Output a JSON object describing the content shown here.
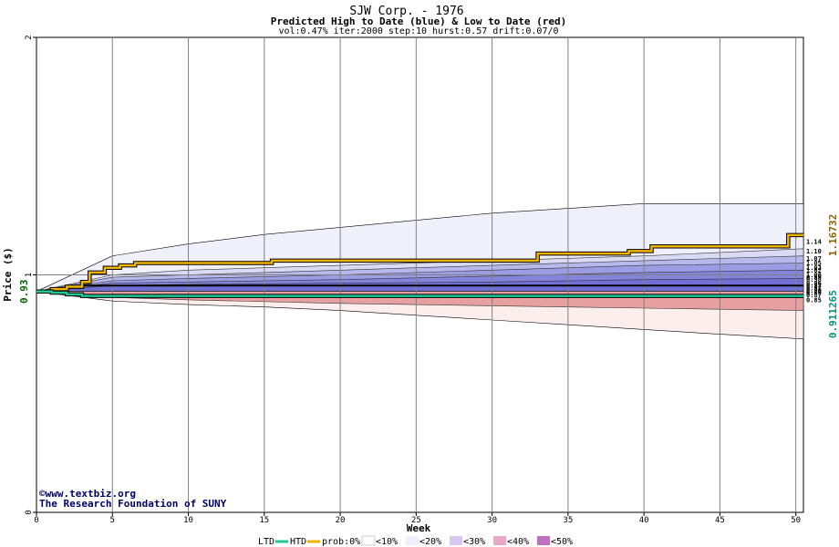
{
  "header": {
    "title": "SJW Corp. - 1976",
    "subtitle": "Predicted High to Date (blue) &  Low to Date (red)",
    "params": "vol:0.47% iter:2000 step:10 hurst:0.57 drift:0.07/0"
  },
  "credits": {
    "site": "www.textbiz.org",
    "org": "The Research Foundation of SUNY"
  },
  "legend": {
    "ltd": "LTD",
    "htd": "HTD",
    "prob": "prob:0%",
    "b10": "<10%",
    "b20": "<20%",
    "b30": "<30%",
    "b40": "<40%",
    "b50": "<50%"
  },
  "chart_data": {
    "type": "area",
    "title": "SJW Corp. - 1976",
    "xlabel": "Week",
    "ylabel": "Price ($)",
    "xlim": [
      0,
      50.5
    ],
    "ylim": [
      0,
      2
    ],
    "x_ticks": [
      0,
      5,
      10,
      15,
      20,
      25,
      30,
      35,
      40,
      45,
      50
    ],
    "y_ticks": [
      0,
      1,
      2
    ],
    "y_start_label": "0.93",
    "start_price": 0.93,
    "grid": true,
    "colors": {
      "htd": "#f0b400",
      "ltd": "#1ec896",
      "blue_band": "#8080e0",
      "red_band": "#f0a0a0",
      "high_value": "#8c6400",
      "low_value": "#009678"
    },
    "high_envelope": {
      "x": [
        0,
        5,
        10,
        15,
        20,
        25,
        30,
        35,
        40,
        45,
        50.5
      ],
      "y": [
        0.93,
        1.08,
        1.13,
        1.17,
        1.2,
        1.23,
        1.26,
        1.28,
        1.3,
        1.3,
        1.3
      ]
    },
    "low_envelope": {
      "x": [
        0,
        5,
        10,
        15,
        20,
        25,
        30,
        35,
        40,
        45,
        50.5
      ],
      "y": [
        0.93,
        0.89,
        0.875,
        0.865,
        0.85,
        0.83,
        0.81,
        0.79,
        0.77,
        0.75,
        0.73
      ]
    },
    "high_bands": [
      {
        "x": [
          0,
          5,
          10,
          20,
          30,
          40,
          50.5
        ],
        "y": [
          0.93,
          1.0,
          1.02,
          1.04,
          1.06,
          1.08,
          1.11
        ]
      },
      {
        "x": [
          0,
          5,
          10,
          20,
          30,
          40,
          50.5
        ],
        "y": [
          0.93,
          0.99,
          1.0,
          1.02,
          1.04,
          1.06,
          1.08
        ]
      },
      {
        "x": [
          0,
          5,
          10,
          20,
          30,
          40,
          50.5
        ],
        "y": [
          0.93,
          0.975,
          0.985,
          1.0,
          1.02,
          1.04,
          1.05
        ]
      },
      {
        "x": [
          0,
          5,
          10,
          20,
          30,
          40,
          50.5
        ],
        "y": [
          0.93,
          0.965,
          0.97,
          0.98,
          0.995,
          1.01,
          1.02
        ]
      },
      {
        "x": [
          0,
          5,
          10,
          20,
          30,
          40,
          50.5
        ],
        "y": [
          0.93,
          0.955,
          0.96,
          0.965,
          0.97,
          0.98,
          0.985
        ]
      }
    ],
    "low_bands": [
      {
        "x": [
          0,
          5,
          10,
          20,
          30,
          40,
          50.5
        ],
        "y": [
          0.93,
          0.92,
          0.915,
          0.91,
          0.905,
          0.9,
          0.895
        ]
      },
      {
        "x": [
          0,
          5,
          10,
          20,
          30,
          40,
          50.5
        ],
        "y": [
          0.93,
          0.915,
          0.905,
          0.895,
          0.885,
          0.875,
          0.87
        ]
      },
      {
        "x": [
          0,
          5,
          10,
          20,
          30,
          40,
          50.5
        ],
        "y": [
          0.93,
          0.905,
          0.895,
          0.88,
          0.87,
          0.86,
          0.85
        ]
      }
    ],
    "htd_series": {
      "name": "HTD",
      "x": [
        0,
        1,
        1,
        2,
        2,
        3,
        3,
        3.5,
        3.5,
        4.5,
        4.5,
        5.5,
        5.5,
        6.5,
        6.5,
        15.5,
        15.5,
        33,
        33,
        39,
        39,
        40.5,
        40.5,
        49.5,
        49.5,
        50.5
      ],
      "y": [
        0.93,
        0.93,
        0.94,
        0.94,
        0.95,
        0.95,
        0.97,
        0.97,
        1.01,
        1.01,
        1.03,
        1.03,
        1.04,
        1.04,
        1.05,
        1.05,
        1.06,
        1.06,
        1.09,
        1.09,
        1.1,
        1.1,
        1.12,
        1.12,
        1.16732,
        1.16732
      ]
    },
    "ltd_series": {
      "name": "LTD",
      "x": [
        0,
        1,
        1,
        2,
        2,
        3,
        3,
        50.5
      ],
      "y": [
        0.93,
        0.93,
        0.925,
        0.925,
        0.918,
        0.918,
        0.911265,
        0.911265
      ]
    },
    "black_line": {
      "x": [
        0,
        1,
        1,
        2,
        2,
        3,
        3,
        50.5
      ],
      "y": [
        0.93,
        0.93,
        0.935,
        0.935,
        0.945,
        0.945,
        0.955,
        0.955
      ]
    },
    "right_levels": [
      {
        "label": "1.14",
        "y": 1.14
      },
      {
        "label": "1.10",
        "y": 1.1
      },
      {
        "label": "1.07",
        "y": 1.07
      },
      {
        "label": "1.05",
        "y": 1.05
      },
      {
        "label": "1.03",
        "y": 1.03
      },
      {
        "label": "1.02",
        "y": 1.02
      },
      {
        "label": "1.00",
        "y": 1.0
      },
      {
        "label": "0.99",
        "y": 0.99
      },
      {
        "label": "0.98",
        "y": 0.98
      },
      {
        "label": "0.96",
        "y": 0.965
      },
      {
        "label": "0.93",
        "y": 0.955
      },
      {
        "label": "0.91",
        "y": 0.945
      },
      {
        "label": "0.90",
        "y": 0.935
      },
      {
        "label": "0.89",
        "y": 0.925
      },
      {
        "label": "0.87",
        "y": 0.915
      },
      {
        "label": "0.85",
        "y": 0.895
      }
    ],
    "high_value_label": "1.16732",
    "low_value_label": "0.911265"
  }
}
